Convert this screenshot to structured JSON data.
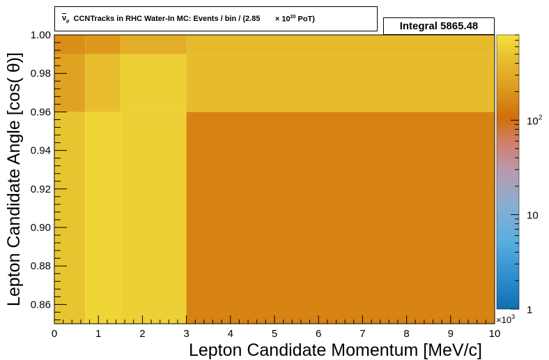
{
  "title": {
    "nu_symbol": "ν",
    "nu_sub": "μ",
    "text": "CCNTracks in RHC Water-In MC: Events / bin / (2.85",
    "times": "×",
    "pot_base": "10",
    "pot_exp": "20",
    "pot_suffix": "PoT)"
  },
  "integral_label": "Integral 5865.48",
  "chart_data": {
    "type": "heatmap",
    "xlabel": "Lepton Candidate Momentum [MeV/c]",
    "ylabel": "Lepton Candidate Angle [cos( θ)]",
    "x_multiplier": "×10",
    "x_multiplier_exp": "3",
    "xlim": [
      0,
      10000
    ],
    "ylim": [
      0.85,
      1.0
    ],
    "x_ticks": [
      0,
      1,
      2,
      3,
      4,
      5,
      6,
      7,
      8,
      9,
      10
    ],
    "y_ticks": [
      "0.86",
      "0.88",
      "0.90",
      "0.92",
      "0.94",
      "0.96",
      "0.98",
      "1.00"
    ],
    "x_edges": [
      0,
      700,
      1500,
      3000,
      10000
    ],
    "y_edges": [
      0.85,
      0.96,
      0.99,
      1.0
    ],
    "z_log": true,
    "zlim": [
      1,
      800
    ],
    "z_ticks": [
      {
        "value": 1,
        "label": "1"
      },
      {
        "value": 10,
        "label": "10"
      },
      {
        "value": 100,
        "label": "10",
        "exp": "2"
      }
    ],
    "cells": [
      {
        "x": [
          0,
          700
        ],
        "y": [
          0.85,
          0.96
        ],
        "z": 500
      },
      {
        "x": [
          700,
          1500
        ],
        "y": [
          0.85,
          0.96
        ],
        "z": 650
      },
      {
        "x": [
          1500,
          3000
        ],
        "y": [
          0.85,
          0.96
        ],
        "z": 600
      },
      {
        "x": [
          3000,
          10000
        ],
        "y": [
          0.85,
          0.96
        ],
        "z": 150
      },
      {
        "x": [
          0,
          700
        ],
        "y": [
          0.96,
          0.99
        ],
        "z": 250
      },
      {
        "x": [
          700,
          1500
        ],
        "y": [
          0.96,
          0.99
        ],
        "z": 450
      },
      {
        "x": [
          1500,
          3000
        ],
        "y": [
          0.96,
          0.99
        ],
        "z": 600
      },
      {
        "x": [
          3000,
          10000
        ],
        "y": [
          0.96,
          0.99
        ],
        "z": 420
      },
      {
        "x": [
          0,
          700
        ],
        "y": [
          0.99,
          1.0
        ],
        "z": 180
      },
      {
        "x": [
          700,
          1500
        ],
        "y": [
          0.99,
          1.0
        ],
        "z": 210
      },
      {
        "x": [
          1500,
          3000
        ],
        "y": [
          0.99,
          1.0
        ],
        "z": 320
      },
      {
        "x": [
          3000,
          10000
        ],
        "y": [
          0.99,
          1.0
        ],
        "z": 410
      }
    ]
  }
}
